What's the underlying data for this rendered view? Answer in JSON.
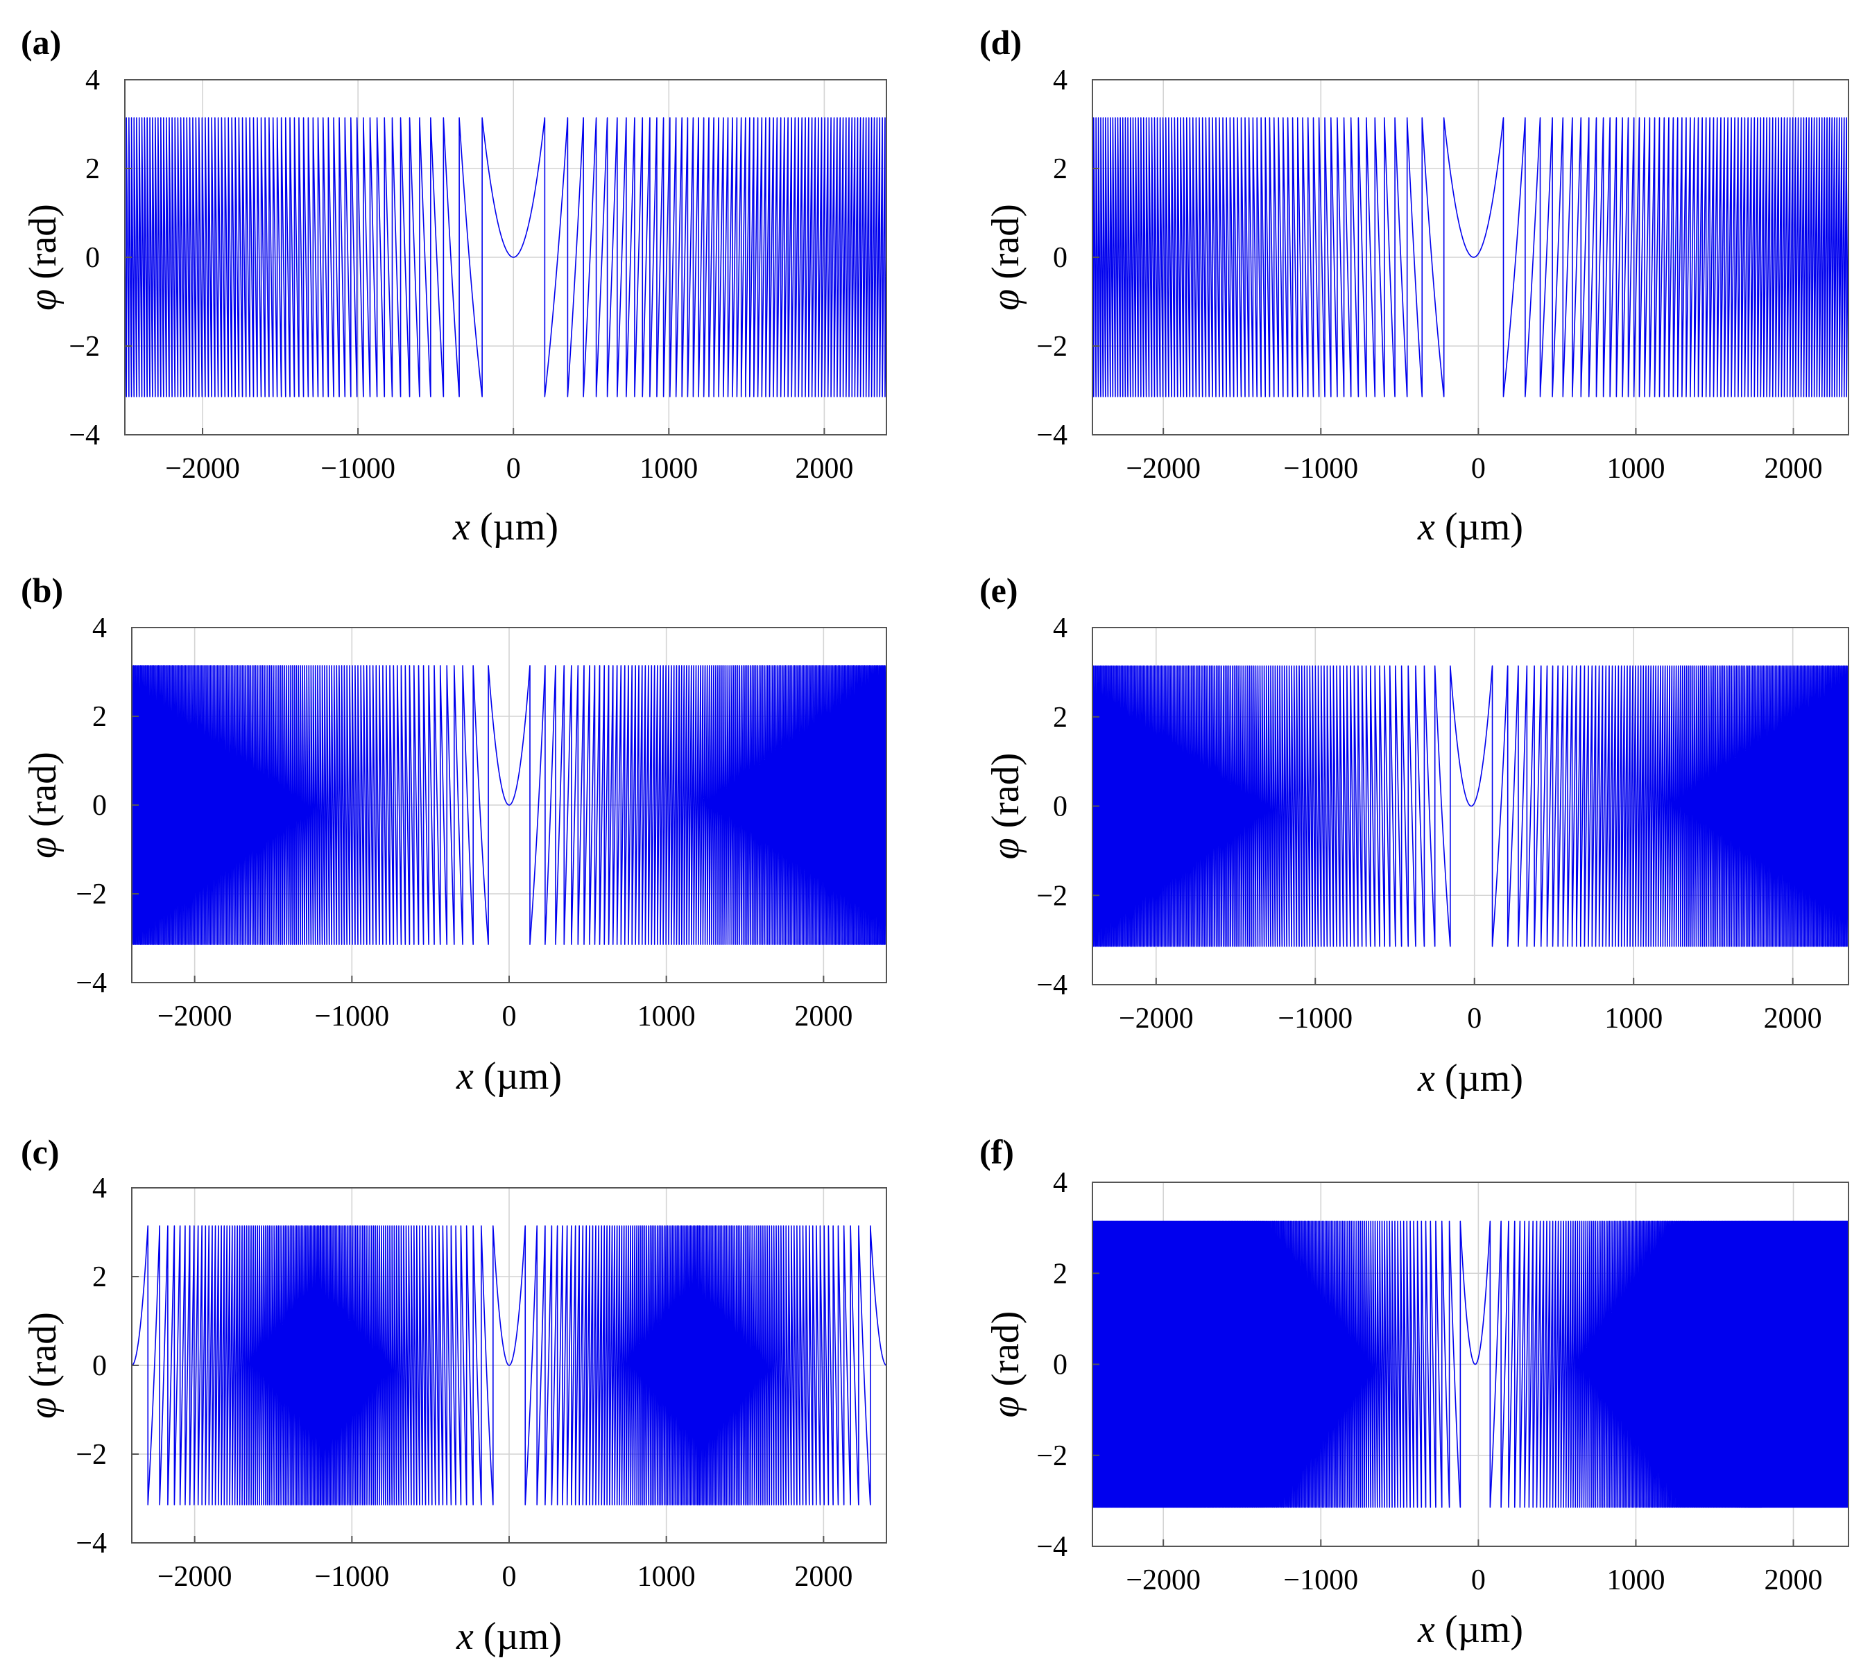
{
  "figure": {
    "series_color": "#0000ee"
  },
  "chart_data": [
    {
      "label": "(a)",
      "type": "line",
      "xlabel_var": "x",
      "xlabel_unit": " (µm)",
      "ylabel_var": "φ",
      "ylabel_unit": " (rad)",
      "xlim": [
        -2500,
        2400
      ],
      "ylim": [
        -4,
        4
      ],
      "xticks": [
        -2000,
        -1000,
        0,
        1000,
        2000
      ],
      "yticks": [
        -4,
        -2,
        0,
        2,
        4
      ],
      "series": [
        {
          "name": "wrapped phase",
          "kind": "wrapped-chirp",
          "k": 7.75e-05,
          "x0": 0,
          "amplitude": 3.14159,
          "x_start": -2500,
          "x_end": 2400
        }
      ],
      "grid": true
    },
    {
      "label": "(b)",
      "type": "line",
      "xlabel_var": "x",
      "xlabel_unit": " (µm)",
      "ylabel_var": "φ",
      "ylabel_unit": " (rad)",
      "xlim": [
        -2400,
        2400
      ],
      "ylim": [
        -4,
        4
      ],
      "xticks": [
        -2000,
        -1000,
        0,
        1000,
        2000
      ],
      "yticks": [
        -4,
        -2,
        0,
        2,
        4
      ],
      "series": [
        {
          "name": "wrapped phase",
          "kind": "wrapped-chirp",
          "k": 0.00018,
          "x0": 0,
          "amplitude": 3.14159,
          "x_start": -2400,
          "x_end": 2400
        }
      ],
      "grid": true
    },
    {
      "label": "(c)",
      "type": "line",
      "xlabel_var": "x",
      "xlabel_unit": " (µm)",
      "ylabel_var": "φ",
      "ylabel_unit": " (rad)",
      "xlim": [
        -2400,
        2400
      ],
      "ylim": [
        -4,
        4
      ],
      "xticks": [
        -2000,
        -1000,
        0,
        1000,
        2000
      ],
      "yticks": [
        -4,
        -2,
        0,
        2,
        4
      ],
      "series": [
        {
          "name": "wrapped phase",
          "kind": "wrapped-chirp-periodic",
          "k": 0.0003,
          "period": 2400,
          "amplitude": 3.14159,
          "x_start": -2400,
          "x_end": 2400
        }
      ],
      "grid": true
    },
    {
      "label": "(d)",
      "type": "line",
      "xlabel_var": "x",
      "xlabel_unit": " (µm)",
      "ylabel_var": "φ",
      "ylabel_unit": " (rad)",
      "xlim": [
        -2450,
        2350
      ],
      "ylim": [
        -4,
        4
      ],
      "xticks": [
        -2000,
        -1000,
        0,
        1000,
        2000
      ],
      "yticks": [
        -4,
        -2,
        0,
        2,
        4
      ],
      "series": [
        {
          "name": "wrapped phase",
          "kind": "wrapped-chirp",
          "k": 8.8e-05,
          "x0": -30,
          "amplitude": 3.14159,
          "x_start": -2450,
          "x_end": 2350
        }
      ],
      "grid": true
    },
    {
      "label": "(e)",
      "type": "line",
      "xlabel_var": "x",
      "xlabel_unit": " (µm)",
      "ylabel_var": "φ",
      "ylabel_unit": " (rad)",
      "xlim": [
        -2400,
        2350
      ],
      "ylim": [
        -4,
        4
      ],
      "xticks": [
        -2000,
        -1000,
        0,
        1000,
        2000
      ],
      "yticks": [
        -4,
        -2,
        0,
        2,
        4
      ],
      "series": [
        {
          "name": "wrapped phase",
          "kind": "wrapped-chirp",
          "k": 0.00018,
          "x0": -20,
          "amplitude": 3.14159,
          "x_start": -2400,
          "x_end": 2350
        }
      ],
      "grid": true
    },
    {
      "label": "(f)",
      "type": "line",
      "xlabel_var": "x",
      "xlabel_unit": " (µm)",
      "ylabel_var": "φ",
      "ylabel_unit": " (rad)",
      "xlim": [
        -2450,
        2350
      ],
      "ylim": [
        -4,
        4
      ],
      "xticks": [
        -2000,
        -1000,
        0,
        1000,
        2000
      ],
      "yticks": [
        -4,
        -2,
        0,
        2,
        4
      ],
      "series": [
        {
          "name": "wrapped phase",
          "kind": "wrapped-chirp",
          "k": 0.00035,
          "x0": -20,
          "amplitude": 3.14159,
          "x_start": -2450,
          "x_end": 2350
        }
      ],
      "grid": true
    }
  ]
}
